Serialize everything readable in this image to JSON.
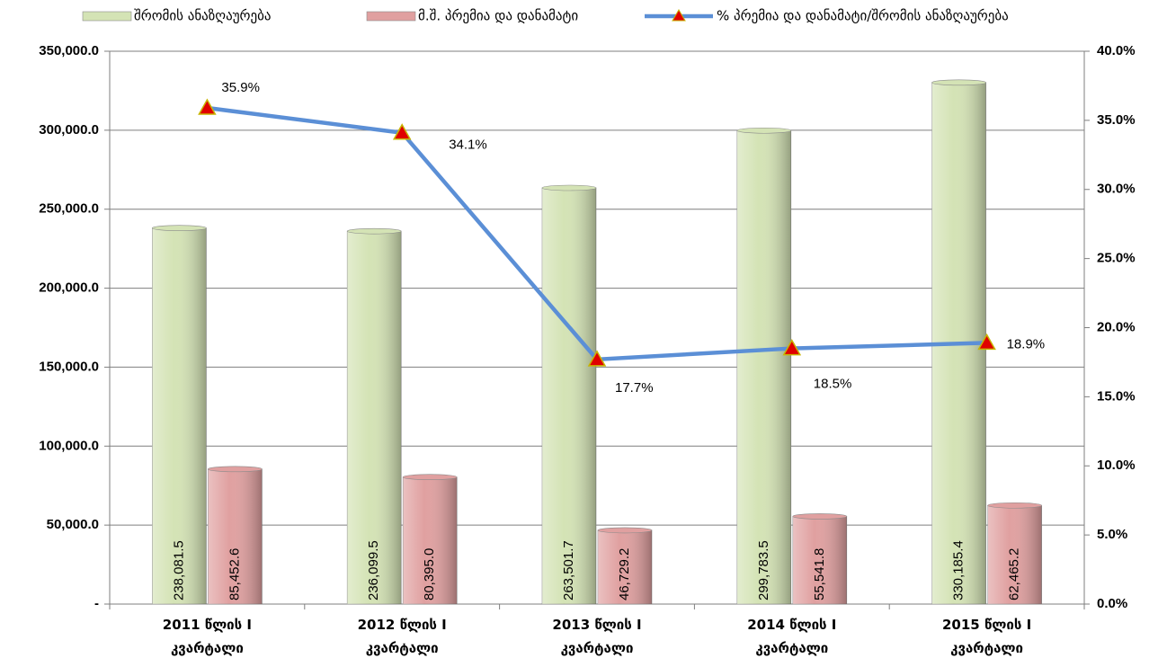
{
  "chart_data": {
    "type": "bar_line",
    "categories": [
      "2011 წლის I კვარტალი",
      "2012 წლის I კვარტალი",
      "2013 წლის I კვარტალი",
      "2014 წლის I კვარტალი",
      "2015 წლის I კვარტალი"
    ],
    "series": [
      {
        "name": "შრომის ანაზღაურება",
        "type": "bar",
        "color": "#d4e3b5",
        "values": [
          238081.5,
          236099.5,
          263501.7,
          299783.5,
          330185.4
        ],
        "value_labels": [
          "238,081.5",
          "236,099.5",
          "263,501.7",
          "299,783.5",
          "330,185.4"
        ]
      },
      {
        "name": "მ.შ. პრემია და დანამატი",
        "type": "bar",
        "color": "#e0a0a0",
        "values": [
          85452.6,
          80395.0,
          46729.2,
          55541.8,
          62465.2
        ],
        "value_labels": [
          "85,452.6",
          "80,395.0",
          "46,729.2",
          "55,541.8",
          "62,465.2"
        ]
      },
      {
        "name": "% პრემია და დანამატი/შრომის ანაზღაურება",
        "type": "line",
        "axis": "y2",
        "color": "#5b8fd6",
        "marker_color": "#e00000",
        "values": [
          35.9,
          34.1,
          17.7,
          18.5,
          18.9
        ],
        "value_labels": [
          "35.9%",
          "34.1%",
          "17.7%",
          "18.5%",
          "18.9%"
        ]
      }
    ],
    "ylim": [
      0,
      350000
    ],
    "yticks": [
      {
        "value": 0,
        "label": "-"
      },
      {
        "value": 50000,
        "label": "50,000.0"
      },
      {
        "value": 100000,
        "label": "100,000.0"
      },
      {
        "value": 150000,
        "label": "150,000.0"
      },
      {
        "value": 200000,
        "label": "200,000.0"
      },
      {
        "value": 250000,
        "label": "250,000.0"
      },
      {
        "value": 300000,
        "label": "300,000.0"
      },
      {
        "value": 350000,
        "label": "350,000.0"
      }
    ],
    "y2lim": [
      0,
      40
    ],
    "y2ticks": [
      {
        "value": 0,
        "label": "0.0%"
      },
      {
        "value": 5,
        "label": "5.0%"
      },
      {
        "value": 10,
        "label": "10.0%"
      },
      {
        "value": 15,
        "label": "15.0%"
      },
      {
        "value": 20,
        "label": "20.0%"
      },
      {
        "value": 25,
        "label": "25.0%"
      },
      {
        "value": 30,
        "label": "30.0%"
      },
      {
        "value": 35,
        "label": "35.0%"
      },
      {
        "value": 40,
        "label": "40.0%"
      }
    ],
    "grid": true,
    "legend": "top"
  }
}
